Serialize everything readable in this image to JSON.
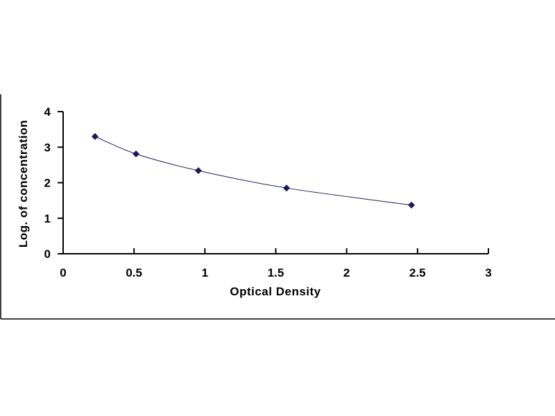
{
  "chart_data": {
    "type": "scatter",
    "title": "",
    "xlabel": "Optical Density",
    "ylabel": "Log. of concentration",
    "xlim": [
      0,
      3
    ],
    "ylim": [
      0,
      4
    ],
    "x_ticks": [
      "0",
      "0.5",
      "1",
      "1.5",
      "2",
      "2.5",
      "3"
    ],
    "y_ticks": [
      "0",
      "1",
      "2",
      "3",
      "4"
    ],
    "grid": false,
    "legend": "none",
    "series": [
      {
        "x": [
          0.225,
          0.514,
          0.954,
          1.576,
          2.457
        ],
        "y": [
          3.3,
          2.81,
          2.34,
          1.85,
          1.37
        ],
        "marker": "diamond",
        "trendline": "smooth curve",
        "color": "#1a1a5e"
      }
    ]
  }
}
